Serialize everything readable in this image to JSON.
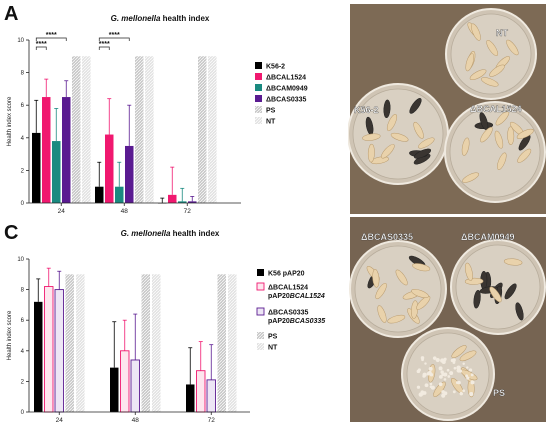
{
  "panels": {
    "a": "A",
    "b": "B",
    "c": "C"
  },
  "chart_data": [
    {
      "type": "bar",
      "title": "G. mellonella health index",
      "ylabel": "Health index score",
      "xlabel": "",
      "ylim": [
        0,
        10
      ],
      "yticks": [
        "0",
        "2",
        "4",
        "6",
        "8",
        "10"
      ],
      "categories": [
        "24",
        "48",
        "72"
      ],
      "series": [
        {
          "name": "K56-2",
          "color": "#000000",
          "hatch": false,
          "values": [
            4.3,
            1.0,
            0.0
          ],
          "errors": [
            2.0,
            1.5,
            0.3
          ]
        },
        {
          "name": "ΔBCAL1524",
          "color": "#f0186f",
          "hatch": false,
          "values": [
            6.5,
            4.2,
            0.5
          ],
          "errors": [
            1.1,
            2.2,
            1.7
          ]
        },
        {
          "name": "ΔBCAM0949",
          "color": "#1a8a80",
          "hatch": false,
          "values": [
            3.8,
            1.0,
            0.1
          ],
          "errors": [
            2.0,
            1.5,
            0.8
          ]
        },
        {
          "name": "ΔBCAS0335",
          "color": "#5a1b91",
          "hatch": false,
          "values": [
            6.5,
            3.5,
            0.1
          ],
          "errors": [
            1.0,
            2.5,
            0.3
          ]
        },
        {
          "name": "PS",
          "color": "#c8c8c8",
          "hatch": true,
          "values": [
            9,
            9,
            9
          ],
          "errors": [
            0,
            0,
            0
          ]
        },
        {
          "name": "NT",
          "color": "#e2e2e2",
          "hatch": true,
          "values": [
            9,
            9,
            9
          ],
          "errors": [
            0,
            0,
            0
          ]
        }
      ],
      "significance": [
        {
          "label": "****",
          "group": 0,
          "from": 0,
          "to": 1,
          "level": 0
        },
        {
          "label": "****",
          "group": 0,
          "from": 0,
          "to": 3,
          "level": 1
        },
        {
          "label": "****",
          "group": 1,
          "from": 0,
          "to": 1,
          "level": 0
        },
        {
          "label": "****",
          "group": 1,
          "from": 0,
          "to": 3,
          "level": 1
        }
      ]
    },
    {
      "type": "bar",
      "title": "G. mellonella health index",
      "ylabel": "Health index score",
      "xlabel": "",
      "ylim": [
        0,
        10
      ],
      "yticks": [
        "0",
        "2",
        "4",
        "6",
        "8",
        "10"
      ],
      "categories": [
        "24",
        "48",
        "72"
      ],
      "series": [
        {
          "name": "K56 pAP20",
          "name2": "",
          "color": "#000000",
          "fill": "#000000",
          "hatch": false,
          "values": [
            7.2,
            2.9,
            1.8
          ],
          "errors": [
            1.5,
            3.0,
            2.4
          ]
        },
        {
          "name": "ΔBCAL1524",
          "name2": "pAP20BCAL1524",
          "color": "#f0186f",
          "fill": "#fde6ee",
          "hatch": false,
          "values": [
            8.2,
            4.0,
            2.7
          ],
          "errors": [
            1.2,
            2.0,
            1.9
          ]
        },
        {
          "name": "ΔBCAS0335",
          "name2": "pAP20BCAS0335",
          "color": "#5a1b91",
          "fill": "#ede6f5",
          "hatch": false,
          "values": [
            8.0,
            3.4,
            2.1
          ],
          "errors": [
            1.2,
            3.0,
            2.3
          ]
        },
        {
          "name": "PS",
          "name2": "",
          "color": "#c8c8c8",
          "fill": "#c8c8c8",
          "hatch": true,
          "values": [
            9,
            9,
            9
          ],
          "errors": [
            0,
            0,
            0
          ]
        },
        {
          "name": "NT",
          "name2": "",
          "color": "#e2e2e2",
          "fill": "#e2e2e2",
          "hatch": true,
          "values": [
            9,
            9,
            9
          ],
          "errors": [
            0,
            0,
            0
          ]
        }
      ]
    }
  ],
  "photo": {
    "colors": {
      "top_bg": "#7d6a55",
      "bottom_bg": "#766452",
      "larva": "#e9d2ab",
      "dark_larva": "#3a3531"
    },
    "labels": {
      "nt": "NT",
      "k56": "K56-2",
      "bcal": "ΔBCAL1524",
      "bcas": "ΔBCAS0335",
      "bcam": "ΔBCAM0949",
      "ps": "PS"
    }
  }
}
